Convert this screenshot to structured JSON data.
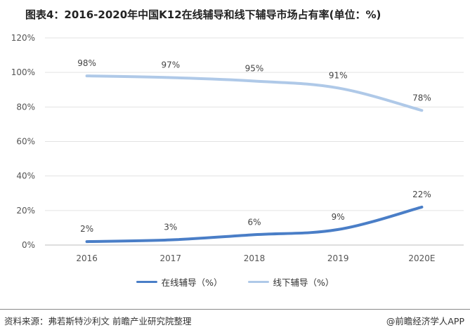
{
  "title": "图表4：2016-2020年中国K12在线辅导和线下辅导市场占有率(单位：%)",
  "source": "资料来源：弗若斯特沙利文 前瞻产业研究院整理",
  "brand": "@前瞻经济学人APP",
  "chart_data": {
    "type": "line",
    "categories": [
      "2016",
      "2017",
      "2018",
      "2019",
      "2020E"
    ],
    "ylim": [
      0,
      120
    ],
    "yticks": [
      0,
      20,
      40,
      60,
      80,
      100,
      120
    ],
    "y_tick_suffix": "%",
    "grid": true,
    "legend_position": "bottom",
    "series": [
      {
        "name": "在线辅导（%）",
        "color": "#4A7EC7",
        "values": [
          2,
          3,
          6,
          9,
          22
        ],
        "labels": [
          "2%",
          "3%",
          "6%",
          "9%",
          "22%"
        ]
      },
      {
        "name": "线下辅导（%）",
        "color": "#AFC9E8",
        "values": [
          98,
          97,
          95,
          91,
          78
        ],
        "labels": [
          "98%",
          "97%",
          "95%",
          "91%",
          "78%"
        ]
      }
    ]
  }
}
